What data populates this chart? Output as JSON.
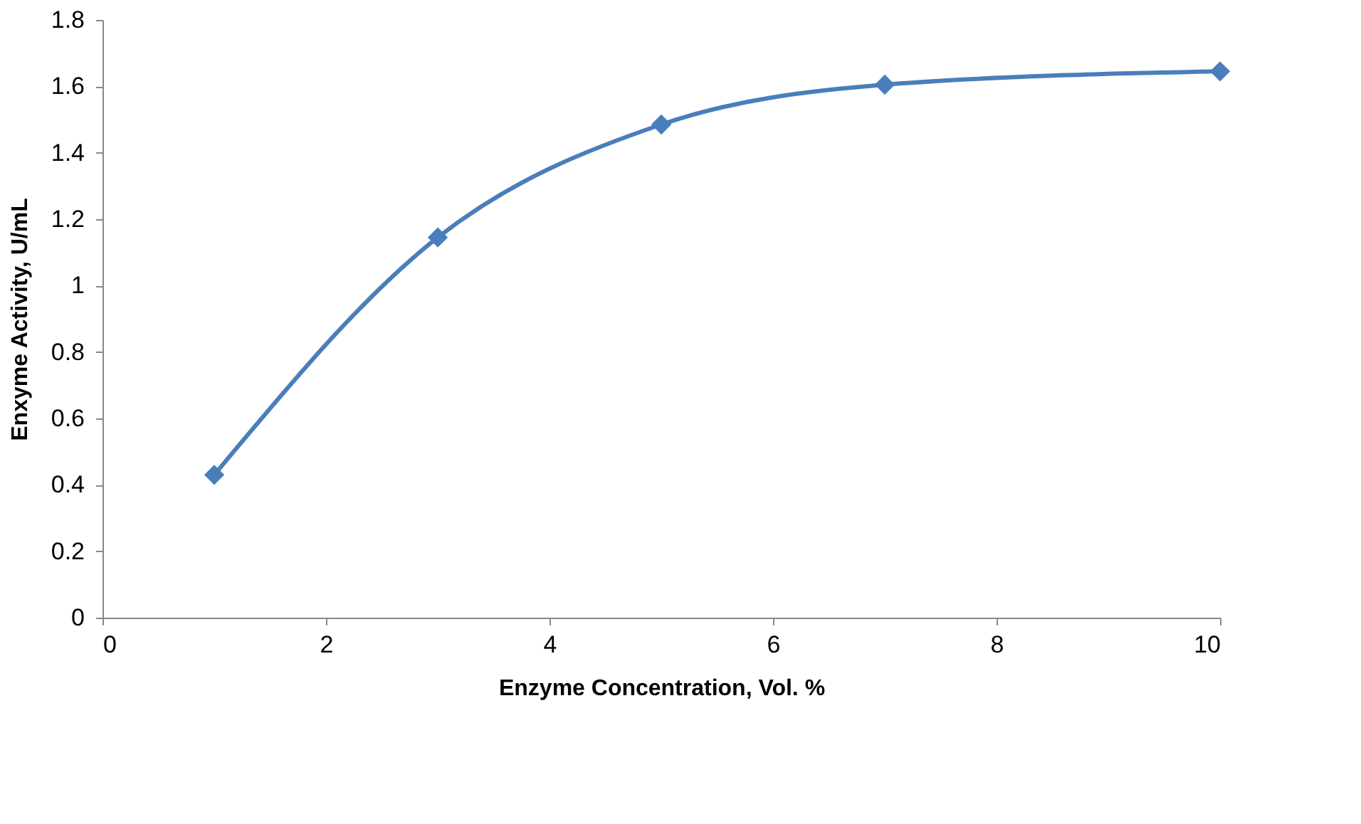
{
  "chart_data": {
    "type": "line",
    "xlabel": "Enzyme Concentration, Vol. %",
    "ylabel": "Enxyme Activity, U/mL",
    "x": [
      1,
      3,
      5,
      7,
      10
    ],
    "series": [
      {
        "color": "#4a7ebb",
        "values": [
          0.43,
          1.145,
          1.485,
          1.605,
          1.645
        ]
      }
    ],
    "xlim": [
      0,
      10
    ],
    "xticks": [
      0,
      2,
      4,
      6,
      8,
      10
    ],
    "ylim": [
      0,
      1.8
    ],
    "yticks": [
      0,
      0.2,
      0.4,
      0.6,
      0.8,
      1,
      1.2,
      1.4,
      1.6,
      1.8
    ],
    "grid": false,
    "marker": "diamond",
    "line_style": "solid"
  }
}
